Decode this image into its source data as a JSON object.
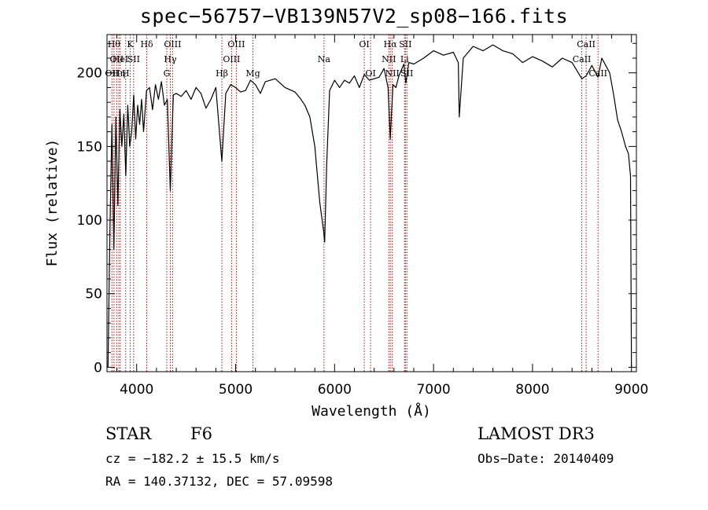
{
  "chart_data": {
    "type": "line",
    "title": "spec−56757−VB139N57V2_sp08−166.fits",
    "xlabel": "Wavelength (Å)",
    "ylabel": "Flux (relative)",
    "xlim": [
      3700,
      9050
    ],
    "ylim": [
      -3,
      226
    ],
    "xticks": [
      4000,
      5000,
      6000,
      7000,
      8000,
      9000
    ],
    "yticks": [
      0,
      50,
      100,
      150,
      200
    ],
    "series": [
      {
        "color": "#000000",
        "x": [
          3710,
          3730,
          3750,
          3770,
          3790,
          3810,
          3830,
          3850,
          3870,
          3890,
          3910,
          3930,
          3950,
          3970,
          3990,
          4010,
          4030,
          4050,
          4070,
          4100,
          4130,
          4160,
          4190,
          4220,
          4250,
          4280,
          4310,
          4340,
          4370,
          4400,
          4450,
          4500,
          4550,
          4600,
          4650,
          4700,
          4750,
          4800,
          4861,
          4900,
          4950,
          5000,
          5050,
          5100,
          5150,
          5200,
          5250,
          5300,
          5400,
          5500,
          5600,
          5650,
          5700,
          5750,
          5800,
          5850,
          5890,
          5900,
          5920,
          5950,
          6000,
          6050,
          6100,
          6150,
          6200,
          6250,
          6300,
          6350,
          6400,
          6450,
          6500,
          6540,
          6563,
          6590,
          6620,
          6650,
          6700,
          6720,
          6750,
          6800,
          6900,
          7000,
          7100,
          7200,
          7250,
          7260,
          7300,
          7400,
          7500,
          7600,
          7700,
          7800,
          7900,
          8000,
          8100,
          8200,
          8300,
          8400,
          8498,
          8542,
          8600,
          8662,
          8700,
          8740,
          8780,
          8820,
          8860,
          8900,
          8940,
          8970,
          8990,
          9000
        ],
        "y": [
          0,
          95,
          165,
          80,
          170,
          110,
          175,
          150,
          172,
          130,
          178,
          150,
          160,
          185,
          155,
          178,
          165,
          182,
          160,
          188,
          190,
          175,
          192,
          182,
          194,
          178,
          182,
          120,
          185,
          186,
          184,
          188,
          182,
          190,
          186,
          176,
          182,
          190,
          140,
          186,
          192,
          190,
          187,
          188,
          195,
          192,
          186,
          194,
          196,
          190,
          187,
          183,
          178,
          170,
          150,
          112,
          92,
          85,
          138,
          188,
          195,
          190,
          195,
          193,
          198,
          190,
          199,
          195,
          196,
          197,
          203,
          190,
          155,
          192,
          190,
          198,
          206,
          193,
          207,
          206,
          210,
          215,
          212,
          214,
          207,
          170,
          210,
          218,
          215,
          219,
          215,
          213,
          207,
          211,
          208,
          204,
          210,
          207,
          196,
          198,
          205,
          197,
          210,
          205,
          200,
          185,
          168,
          160,
          150,
          145,
          130,
          0
        ]
      }
    ],
    "line_markers": [
      {
        "x": 3750,
        "label": "OII",
        "row": 2
      },
      {
        "x": 3771,
        "label": "Hθ",
        "row": 0
      },
      {
        "x": 3798,
        "label": "OII",
        "row": 1
      },
      {
        "x": 3820,
        "label": "Hη",
        "row": 2
      },
      {
        "x": 3835,
        "label": "HeI",
        "row": 1
      },
      {
        "x": 3889,
        "label": "H",
        "row": 2
      },
      {
        "x": 3934,
        "label": "K",
        "row": 0
      },
      {
        "x": 3969,
        "label": "SII",
        "row": 1
      },
      {
        "x": 4102,
        "label": "Hδ",
        "row": 0
      },
      {
        "x": 4304,
        "label": "G",
        "row": 2
      },
      {
        "x": 4340,
        "label": "Hγ",
        "row": 1
      },
      {
        "x": 4363,
        "label": "OIII",
        "row": 0
      },
      {
        "x": 4861,
        "label": "Hβ",
        "row": 2
      },
      {
        "x": 4959,
        "label": "OIII",
        "row": 1
      },
      {
        "x": 5007,
        "label": "OIII",
        "row": 0
      },
      {
        "x": 5175,
        "label": "Mg",
        "row": 2
      },
      {
        "x": 5893,
        "label": "Na",
        "row": 1
      },
      {
        "x": 6300,
        "label": "OI",
        "row": 0
      },
      {
        "x": 6364,
        "label": "OI",
        "row": 2
      },
      {
        "x": 6548,
        "label": "NII",
        "row": 1
      },
      {
        "x": 6563,
        "label": "Hα",
        "row": 0
      },
      {
        "x": 6583,
        "label": "NII",
        "row": 2
      },
      {
        "x": 6707,
        "label": "Li",
        "row": 1
      },
      {
        "x": 6716,
        "label": "SII",
        "row": 0
      },
      {
        "x": 6731,
        "label": "SII",
        "row": 2
      },
      {
        "x": 8498,
        "label": "CaII",
        "row": 1
      },
      {
        "x": 8542,
        "label": "CaII",
        "row": 0
      },
      {
        "x": 8662,
        "label": "CaII",
        "row": 2
      }
    ],
    "grid": false
  },
  "info": {
    "object_class": "STAR",
    "subclass": "F6",
    "survey": "LAMOST DR3",
    "cz": "cz = −182.2 ± 15.5 km/s",
    "obs_date": "Obs−Date: 20140409",
    "radec": "RA = 140.37132, DEC =  57.09598"
  }
}
